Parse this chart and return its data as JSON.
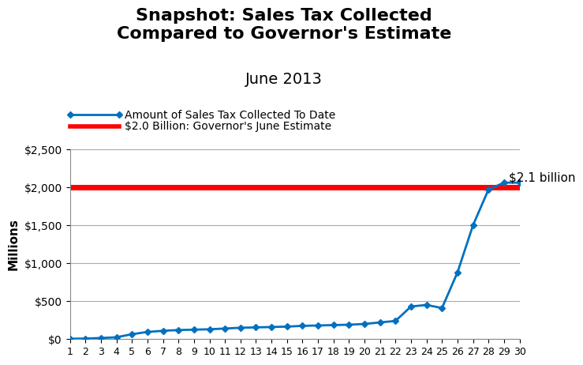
{
  "title_line1": "Snapshot: Sales Tax Collected",
  "title_line2": "Compared to Governor's Estimate",
  "title_line3": "June 2013",
  "xlabel": "",
  "ylabel": "Millions",
  "governor_estimate": 2000,
  "governor_label": "$2.0 Billion: Governor's June Estimate",
  "collected_label": "Amount of Sales Tax Collected To Date",
  "annotation": "$2.1 billion",
  "days": [
    1,
    2,
    3,
    4,
    5,
    6,
    7,
    8,
    9,
    10,
    11,
    12,
    13,
    14,
    15,
    16,
    17,
    18,
    19,
    20,
    21,
    22,
    23,
    24,
    25,
    26,
    27,
    28,
    29,
    30
  ],
  "values": [
    5,
    8,
    15,
    25,
    65,
    95,
    110,
    120,
    125,
    130,
    140,
    150,
    155,
    160,
    165,
    175,
    180,
    185,
    190,
    200,
    220,
    240,
    430,
    450,
    410,
    880,
    1500,
    1970,
    2060,
    2060
  ],
  "ylim": [
    0,
    2500
  ],
  "yticks": [
    0,
    500,
    1000,
    1500,
    2000,
    2500
  ],
  "ytick_labels": [
    "$0",
    "$500",
    "$1,000",
    "$1,500",
    "$2,000",
    "$2,500"
  ],
  "line_color": "#0070C0",
  "governor_line_color": "#FF0000",
  "background_color": "#FFFFFF",
  "grid_color": "#AAAAAA",
  "title_fontsize": 16,
  "axis_label_fontsize": 11,
  "tick_fontsize": 10,
  "legend_fontsize": 10,
  "annotation_fontsize": 11
}
